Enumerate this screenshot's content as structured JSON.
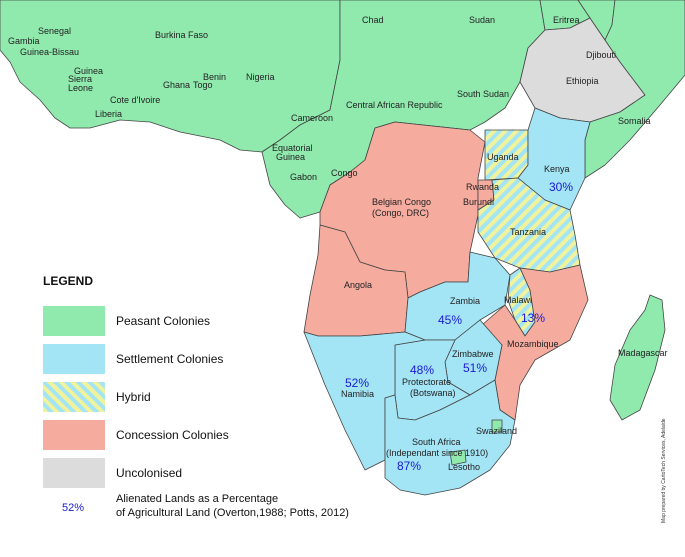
{
  "colors": {
    "peasant": "#90eaae",
    "settlement": "#a3e4f5",
    "concession": "#f6ab9f",
    "uncolonised": "#dcdcdc",
    "hybrid_stripe_a": "#f1f39c",
    "hybrid_stripe_b": "#a3e4f5",
    "percent_text": "#1a1ad6",
    "border": "#444444"
  },
  "legend": {
    "title": "LEGEND",
    "items": [
      {
        "label": "Peasant Colonies",
        "category": "peasant"
      },
      {
        "label": "Settlement Colonies",
        "category": "settlement"
      },
      {
        "label": "Hybrid",
        "category": "hybrid"
      },
      {
        "label": "Concession Colonies",
        "category": "concession"
      },
      {
        "label": "Uncolonised",
        "category": "uncolonised"
      }
    ],
    "percent_sample": "52%",
    "percent_desc_line1": "Alienated Lands as a Percentage",
    "percent_desc_line2": "of Agricultural Land (Overton,1988; Potts, 2012)"
  },
  "credit": "Map prepared by CartoTech Services, Adelaide",
  "countries": {
    "gambia": "Gambia",
    "senegal": "Senegal",
    "guinea_bissau": "Guinea-Bissau",
    "guinea": "Guinea",
    "sierra_leone_1": "Sierra",
    "sierra_leone_2": "Leone",
    "liberia": "Liberia",
    "cote_divoire": "Cote d'Ivoire",
    "burkina_faso": "Burkina Faso",
    "ghana": "Ghana",
    "togo": "Togo",
    "benin": "Benin",
    "nigeria": "Nigeria",
    "chad": "Chad",
    "sudan": "Sudan",
    "eritrea": "Eritrea",
    "djibouti": "Djibouti",
    "ethiopia": "Ethiopia",
    "somalia": "Somalia",
    "south_sudan": "South Sudan",
    "car": "Central African Republic",
    "cameroon": "Cameroon",
    "eq_guinea_1": "Equatorial",
    "eq_guinea_2": "Guinea",
    "gabon": "Gabon",
    "congo": "Congo",
    "belgian_congo_1": "Belgian Congo",
    "belgian_congo_2": "(Congo, DRC)",
    "uganda": "Uganda",
    "kenya": "Kenya",
    "rwanda": "Rwanda",
    "burundi": "Burundi",
    "tanzania": "Tanzania",
    "angola": "Angola",
    "zambia": "Zambia",
    "malawi": "Malawi",
    "mozambique": "Mozambique",
    "madagascar": "Madagascar",
    "zimbabwe": "Zimbabwe",
    "namibia": "Namibia",
    "botswana_1": "Protectorate",
    "botswana_2": "(Botswana)",
    "swaziland": "Swaziland",
    "south_africa_1": "South Africa",
    "south_africa_2": "(Independant since 1910)",
    "lesotho": "Lesotho"
  },
  "percentages": {
    "kenya": "30%",
    "zambia": "45%",
    "malawi": "13%",
    "zimbabwe": "51%",
    "botswana": "48%",
    "namibia": "52%",
    "south_africa": "87%"
  }
}
